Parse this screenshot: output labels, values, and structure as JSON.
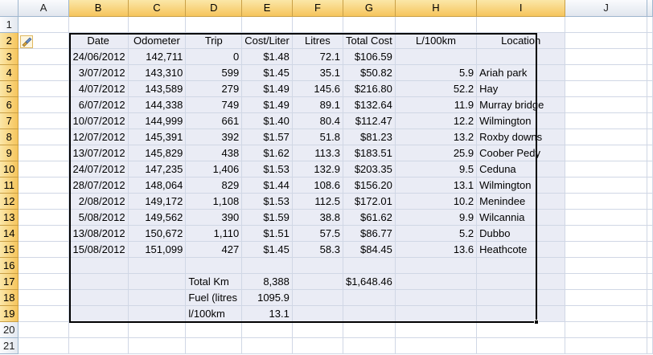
{
  "columns": [
    "A",
    "B",
    "C",
    "D",
    "E",
    "F",
    "G",
    "H",
    "I",
    "J"
  ],
  "rows": [
    "1",
    "2",
    "3",
    "4",
    "5",
    "6",
    "7",
    "8",
    "9",
    "10",
    "11",
    "12",
    "13",
    "14",
    "15",
    "16",
    "17",
    "18",
    "19",
    "20",
    "21"
  ],
  "headers": {
    "date": "Date",
    "odometer": "Odometer",
    "trip": "Trip",
    "cost": "Cost/Liter",
    "litres": "Litres",
    "total": "Total Cost",
    "l100": "L/100km",
    "location": "Location"
  },
  "records": [
    {
      "date": "24/06/2012",
      "odometer": "142,711",
      "trip": "0",
      "cost": "$1.48",
      "litres": "72.1",
      "total": "$106.59",
      "l100": "",
      "location": ""
    },
    {
      "date": "3/07/2012",
      "odometer": "143,310",
      "trip": "599",
      "cost": "$1.45",
      "litres": "35.1",
      "total": "$50.82",
      "l100": "5.9",
      "location": "Ariah park"
    },
    {
      "date": "4/07/2012",
      "odometer": "143,589",
      "trip": "279",
      "cost": "$1.49",
      "litres": "145.6",
      "total": "$216.80",
      "l100": "52.2",
      "location": "Hay"
    },
    {
      "date": "6/07/2012",
      "odometer": "144,338",
      "trip": "749",
      "cost": "$1.49",
      "litres": "89.1",
      "total": "$132.64",
      "l100": "11.9",
      "location": "Murray bridge"
    },
    {
      "date": "10/07/2012",
      "odometer": "144,999",
      "trip": "661",
      "cost": "$1.40",
      "litres": "80.4",
      "total": "$112.47",
      "l100": "12.2",
      "location": "Wilmington"
    },
    {
      "date": "12/07/2012",
      "odometer": "145,391",
      "trip": "392",
      "cost": "$1.57",
      "litres": "51.8",
      "total": "$81.23",
      "l100": "13.2",
      "location": "Roxby downs"
    },
    {
      "date": "13/07/2012",
      "odometer": "145,829",
      "trip": "438",
      "cost": "$1.62",
      "litres": "113.3",
      "total": "$183.51",
      "l100": "25.9",
      "location": "Coober Pedy"
    },
    {
      "date": "24/07/2012",
      "odometer": "147,235",
      "trip": "1,406",
      "cost": "$1.53",
      "litres": "132.9",
      "total": "$203.35",
      "l100": "9.5",
      "location": "Ceduna"
    },
    {
      "date": "28/07/2012",
      "odometer": "148,064",
      "trip": "829",
      "cost": "$1.44",
      "litres": "108.6",
      "total": "$156.20",
      "l100": "13.1",
      "location": "Wilmington"
    },
    {
      "date": "2/08/2012",
      "odometer": "149,172",
      "trip": "1,108",
      "cost": "$1.53",
      "litres": "112.5",
      "total": "$172.01",
      "l100": "10.2",
      "location": "Menindee"
    },
    {
      "date": "5/08/2012",
      "odometer": "149,562",
      "trip": "390",
      "cost": "$1.59",
      "litres": "38.8",
      "total": "$61.62",
      "l100": "9.9",
      "location": "Wilcannia"
    },
    {
      "date": "13/08/2012",
      "odometer": "150,672",
      "trip": "1,110",
      "cost": "$1.51",
      "litres": "57.5",
      "total": "$86.77",
      "l100": "5.2",
      "location": "Dubbo"
    },
    {
      "date": "15/08/2012",
      "odometer": "151,099",
      "trip": "427",
      "cost": "$1.45",
      "litres": "58.3",
      "total": "$84.45",
      "l100": "13.6",
      "location": "Heathcote"
    }
  ],
  "summary": [
    {
      "label": "Total Km",
      "value": "8,388",
      "extra": "$1,648.46"
    },
    {
      "label": "Fuel (litres",
      "value": "1095.9",
      "extra": ""
    },
    {
      "label": "l/100km",
      "value": "13.1",
      "extra": ""
    }
  ],
  "icons": {
    "smart_tag": "paintbrush-icon"
  },
  "colors": {
    "selection_fill": "#eaecf5",
    "header_highlight": "#f6c55c",
    "gridline": "#d0d7e5"
  }
}
